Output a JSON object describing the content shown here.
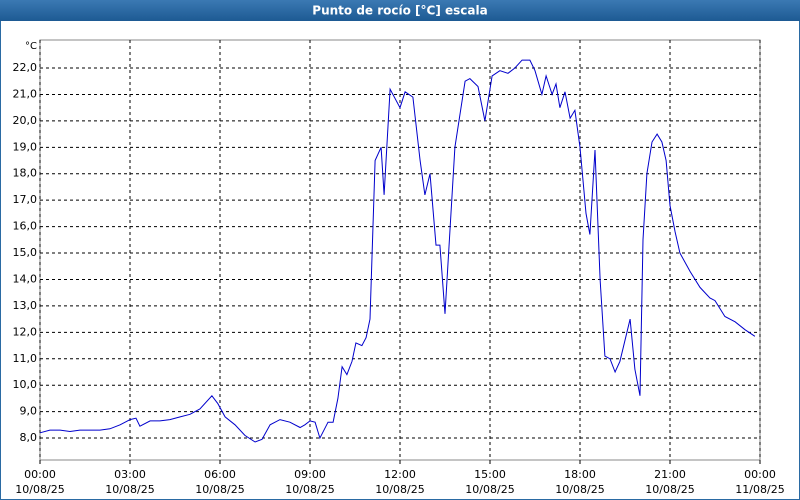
{
  "chart_data": {
    "type": "line",
    "title": "Punto de rocío [°C] escala",
    "y_unit": "°C",
    "x": [
      0,
      0.33,
      0.67,
      1,
      1.33,
      1.67,
      2,
      2.33,
      2.67,
      3,
      3.2,
      3.33,
      3.67,
      4,
      4.33,
      4.67,
      5,
      5.33,
      5.73,
      5.93,
      6.17,
      6.5,
      6.83,
      7.17,
      7.4,
      7.67,
      8,
      8.33,
      8.67,
      8.83,
      9,
      9.17,
      9.33,
      9.6,
      9.77,
      9.93,
      10.07,
      10.23,
      10.4,
      10.53,
      10.73,
      10.87,
      11,
      11.17,
      11.37,
      11.47,
      11.67,
      12,
      12.17,
      12.43,
      12.67,
      12.83,
      13,
      13.2,
      13.33,
      13.5,
      13.83,
      14.17,
      14.33,
      14.6,
      14.83,
      15.07,
      15.33,
      15.6,
      15.83,
      16.07,
      16.33,
      16.5,
      16.73,
      16.87,
      17.07,
      17.2,
      17.33,
      17.5,
      17.67,
      17.83,
      18,
      18.2,
      18.33,
      18.5,
      18.67,
      18.83,
      19,
      19.17,
      19.33,
      19.67,
      19.83,
      20,
      20.1,
      20.23,
      20.4,
      20.57,
      20.73,
      20.87,
      21,
      21.17,
      21.33,
      21.67,
      22,
      22.33,
      22.5,
      22.83,
      23.17,
      23.5,
      23.83
    ],
    "series": [
      {
        "name": "Punto de rocío",
        "color": "#0000cc",
        "values": [
          8.2,
          8.3,
          8.3,
          8.25,
          8.3,
          8.3,
          8.3,
          8.35,
          8.5,
          8.7,
          8.75,
          8.45,
          8.65,
          8.65,
          8.7,
          8.8,
          8.9,
          9.1,
          9.6,
          9.3,
          8.8,
          8.5,
          8.1,
          7.85,
          7.95,
          8.5,
          8.7,
          8.6,
          8.4,
          8.5,
          8.65,
          8.6,
          8.0,
          8.6,
          8.6,
          9.5,
          10.7,
          10.4,
          10.9,
          11.6,
          11.5,
          11.8,
          12.5,
          18.5,
          19.0,
          17.2,
          21.2,
          20.5,
          21.1,
          20.9,
          18.5,
          17.2,
          18.0,
          15.3,
          15.3,
          12.7,
          19.0,
          21.5,
          21.6,
          21.3,
          20.0,
          21.7,
          21.9,
          21.8,
          22.0,
          22.3,
          22.3,
          21.9,
          21.0,
          21.7,
          21.0,
          21.4,
          20.5,
          21.1,
          20.1,
          20.4,
          19.0,
          16.5,
          15.7,
          18.9,
          14.0,
          11.1,
          11.0,
          10.5,
          10.9,
          12.5,
          10.6,
          9.6,
          15.5,
          18.0,
          19.2,
          19.5,
          19.2,
          18.5,
          16.8,
          15.8,
          15.0,
          14.3,
          13.7,
          13.3,
          13.2,
          12.6,
          12.4,
          12.1,
          11.85
        ]
      }
    ],
    "xlim": [
      0,
      24
    ],
    "xticks": [
      {
        "value": 0,
        "label": "00:00",
        "date": "10/08/25"
      },
      {
        "value": 3,
        "label": "03:00",
        "date": "10/08/25"
      },
      {
        "value": 6,
        "label": "06:00",
        "date": "10/08/25"
      },
      {
        "value": 9,
        "label": "09:00",
        "date": "10/08/25"
      },
      {
        "value": 12,
        "label": "12:00",
        "date": "10/08/25"
      },
      {
        "value": 15,
        "label": "15:00",
        "date": "10/08/25"
      },
      {
        "value": 18,
        "label": "18:00",
        "date": "10/08/25"
      },
      {
        "value": 21,
        "label": "21:00",
        "date": "10/08/25"
      },
      {
        "value": 24,
        "label": "00:00",
        "date": "11/08/25"
      }
    ],
    "ylim": [
      7.17,
      23.06
    ],
    "yticks": [
      {
        "value": 8,
        "label": "8,0"
      },
      {
        "value": 9,
        "label": "9,0"
      },
      {
        "value": 10,
        "label": "10,0"
      },
      {
        "value": 11,
        "label": "11,0"
      },
      {
        "value": 12,
        "label": "12,0"
      },
      {
        "value": 13,
        "label": "13,0"
      },
      {
        "value": 14,
        "label": "14,0"
      },
      {
        "value": 15,
        "label": "15,0"
      },
      {
        "value": 16,
        "label": "16,0"
      },
      {
        "value": 17,
        "label": "17,0"
      },
      {
        "value": 18,
        "label": "18,0"
      },
      {
        "value": 19,
        "label": "19,0"
      },
      {
        "value": 20,
        "label": "20,0"
      },
      {
        "value": 21,
        "label": "21,0"
      },
      {
        "value": 22,
        "label": "22,0"
      }
    ],
    "grid": true
  }
}
